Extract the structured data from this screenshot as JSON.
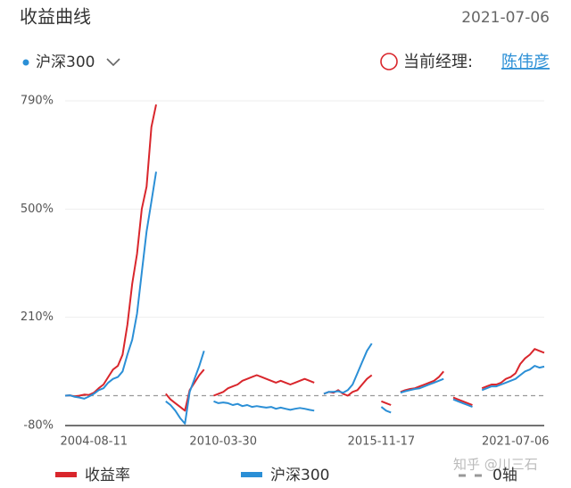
{
  "header": {
    "title": "收益曲线",
    "date": "2021-07-06",
    "benchmark_selector": "沪深300",
    "manager_label": "当前经理:",
    "manager_name": "陈伟彦"
  },
  "chart_data": {
    "type": "line",
    "categories": [
      null,
      null,
      null,
      null,
      null,
      null,
      "2004-08-11",
      null,
      null,
      null,
      null,
      null,
      null,
      null,
      null,
      null,
      null,
      null,
      null,
      null,
      null,
      null,
      null,
      null,
      null,
      null,
      null,
      null,
      null,
      null,
      null,
      null,
      null,
      "2010-03-30",
      null,
      null,
      null,
      null,
      null,
      null,
      null,
      null,
      null,
      null,
      null,
      null,
      null,
      null,
      null,
      null,
      null,
      null,
      null,
      null,
      null,
      null,
      null,
      null,
      null,
      null,
      null,
      null,
      null,
      null,
      null,
      null,
      "2015-11-17",
      null,
      null,
      null,
      null,
      null,
      null,
      null,
      null,
      null,
      null,
      null,
      null,
      null,
      null,
      null,
      null,
      null,
      null,
      null,
      null,
      null,
      null,
      null,
      null,
      null,
      null,
      null,
      "2021-07-06",
      null,
      null,
      null,
      null,
      null,
      null
    ],
    "series": [
      {
        "name": "收益率",
        "color": "#d9262c",
        "values": [
          0,
          1,
          -2,
          0,
          3,
          2,
          8,
          20,
          30,
          50,
          70,
          80,
          110,
          190,
          300,
          380,
          500,
          560,
          720,
          780,
          null,
          5,
          -10,
          -20,
          -30,
          -40,
          15,
          35,
          55,
          70,
          null,
          0,
          5,
          10,
          20,
          25,
          30,
          40,
          45,
          50,
          55,
          50,
          45,
          40,
          35,
          40,
          35,
          30,
          35,
          40,
          45,
          40,
          35,
          null,
          5,
          10,
          8,
          15,
          5,
          0,
          10,
          15,
          30,
          45,
          55,
          null,
          -15,
          -20,
          -25,
          null,
          10,
          15,
          18,
          20,
          25,
          30,
          35,
          40,
          50,
          65,
          null,
          -5,
          -10,
          -15,
          -20,
          -25,
          null,
          20,
          25,
          30,
          30,
          35,
          45,
          50,
          60,
          85,
          100,
          110,
          125,
          120,
          115
        ]
      },
      {
        "name": "沪深300",
        "color": "#2b8fd6",
        "values": [
          0,
          1,
          -3,
          -5,
          -8,
          -2,
          5,
          15,
          20,
          35,
          45,
          50,
          65,
          110,
          150,
          220,
          330,
          440,
          520,
          600,
          null,
          -15,
          -25,
          -40,
          -60,
          -75,
          10,
          45,
          80,
          120,
          null,
          -15,
          -20,
          -18,
          -20,
          -25,
          -22,
          -28,
          -25,
          -30,
          -28,
          -30,
          -32,
          -30,
          -35,
          -32,
          -35,
          -38,
          -35,
          -33,
          -35,
          -38,
          -40,
          null,
          5,
          10,
          10,
          12,
          8,
          15,
          30,
          60,
          90,
          120,
          140,
          null,
          -30,
          -40,
          -45,
          null,
          8,
          12,
          15,
          18,
          20,
          25,
          30,
          35,
          40,
          45,
          null,
          -10,
          -15,
          -20,
          -25,
          -30,
          null,
          15,
          20,
          25,
          25,
          30,
          35,
          40,
          45,
          55,
          65,
          70,
          80,
          75,
          78
        ]
      }
    ],
    "reference_line": {
      "name": "0轴",
      "value": 0,
      "color": "#999999"
    },
    "ylim": [
      -80,
      790
    ],
    "yticks": [
      {
        "value": -80,
        "label": "-80%"
      },
      {
        "value": 210,
        "label": "210%"
      },
      {
        "value": 500,
        "label": "500%"
      },
      {
        "value": 790,
        "label": "790%"
      }
    ],
    "grid": true,
    "watermark": "知乎 @川三石"
  }
}
